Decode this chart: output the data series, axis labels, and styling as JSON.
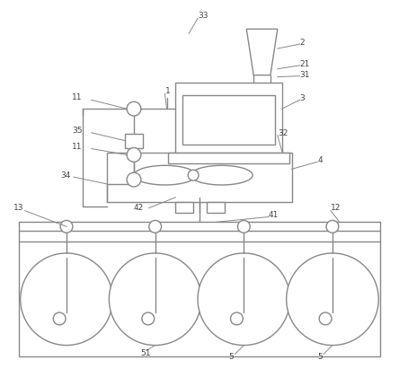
{
  "bg_color": "#ffffff",
  "line_color": "#888888",
  "line_width": 1.0,
  "label_color": "#444444",
  "label_fontsize": 6.5,
  "fig_width": 4.44,
  "fig_height": 4.11,
  "dpi": 100
}
